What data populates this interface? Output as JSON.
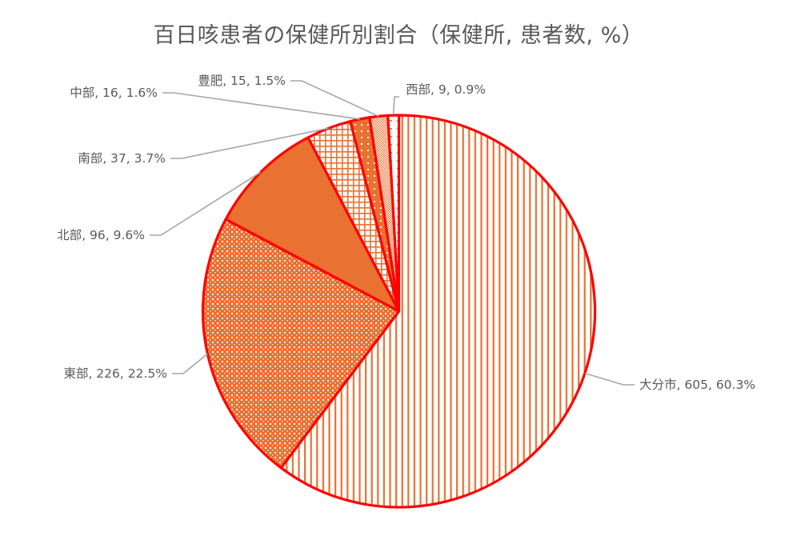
{
  "chart_data": {
    "type": "pie",
    "title": "百日咳患者の保健所別割合（保健所, 患者数, %）",
    "categories": [
      "大分市",
      "東部",
      "北部",
      "南部",
      "中部",
      "豊肥",
      "西部"
    ],
    "values": [
      605,
      226,
      96,
      37,
      16,
      15,
      9
    ],
    "percentages": [
      60.3,
      22.5,
      9.6,
      3.7,
      1.6,
      1.5,
      0.9
    ],
    "labels": [
      "大分市, 605, 60.3%",
      "東部, 226, 22.5%",
      "北部, 96, 9.6%",
      "南部, 37, 3.7%",
      "中部, 16, 1.6%",
      "豊肥, 15, 1.5%",
      "西部, 9, 0.9%"
    ],
    "start_angle": "12 o'clock, clockwise",
    "legend": "none",
    "data_labels": "outside with leader lines"
  },
  "colors": {
    "slice_border": "#ff0000",
    "fill_orange": "#e97132",
    "leader_line": "#a6a6a6",
    "label_text": "#595959",
    "title_text": "#595959"
  }
}
